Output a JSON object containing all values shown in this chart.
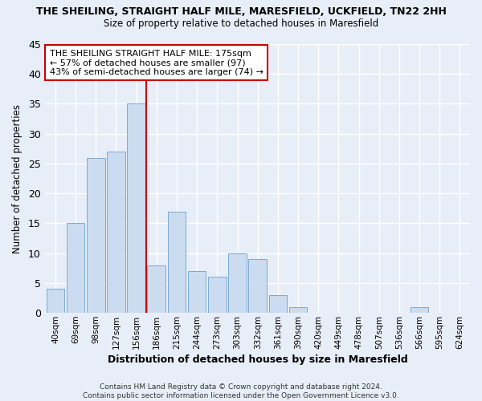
{
  "title1": "THE SHEILING, STRAIGHT HALF MILE, MARESFIELD, UCKFIELD, TN22 2HH",
  "title2": "Size of property relative to detached houses in Maresfield",
  "xlabel": "Distribution of detached houses by size in Maresfield",
  "ylabel": "Number of detached properties",
  "bar_labels": [
    "40sqm",
    "69sqm",
    "98sqm",
    "127sqm",
    "156sqm",
    "186sqm",
    "215sqm",
    "244sqm",
    "273sqm",
    "303sqm",
    "332sqm",
    "361sqm",
    "390sqm",
    "420sqm",
    "449sqm",
    "478sqm",
    "507sqm",
    "536sqm",
    "566sqm",
    "595sqm",
    "624sqm"
  ],
  "bar_values": [
    4,
    15,
    26,
    27,
    35,
    8,
    17,
    7,
    6,
    10,
    9,
    3,
    1,
    0,
    0,
    0,
    0,
    0,
    1,
    0,
    0
  ],
  "bar_color": "#ccdcf0",
  "bar_edge_color": "#7aaad0",
  "vline_x": 4.5,
  "vline_color": "#cc0000",
  "annotation_line1": "THE SHEILING STRAIGHT HALF MILE: 175sqm",
  "annotation_line2": "← 57% of detached houses are smaller (97)",
  "annotation_line3": "43% of semi-detached houses are larger (74) →",
  "annotation_box_color": "#ffffff",
  "annotation_box_edge": "#cc0000",
  "ylim": [
    0,
    45
  ],
  "yticks": [
    0,
    5,
    10,
    15,
    20,
    25,
    30,
    35,
    40,
    45
  ],
  "footer": "Contains HM Land Registry data © Crown copyright and database right 2024.\nContains public sector information licensed under the Open Government Licence v3.0.",
  "bg_color": "#e8eef8",
  "grid_color": "#ffffff",
  "plot_bg_color": "#e8eef8"
}
